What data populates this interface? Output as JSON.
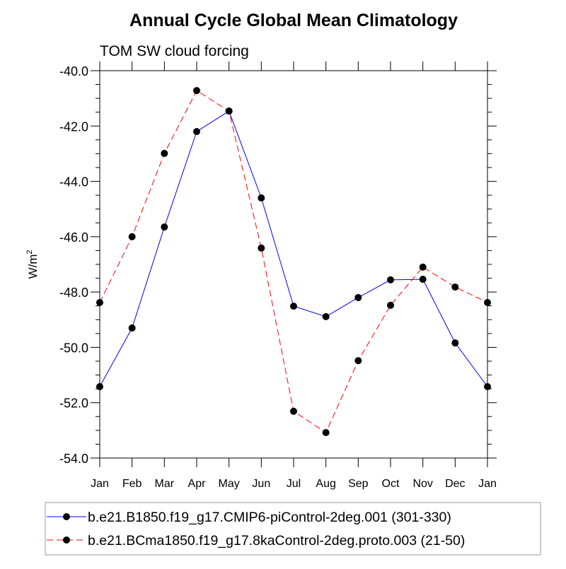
{
  "chart_data": {
    "type": "line",
    "title": "Annual Cycle Global Mean Climatology",
    "subtitle": "TOM SW cloud forcing",
    "xlabel": "",
    "ylabel": "W/m",
    "ylabel_superscript": "2",
    "categories": [
      "Jan",
      "Feb",
      "Mar",
      "Apr",
      "May",
      "Jun",
      "Jul",
      "Aug",
      "Sep",
      "Oct",
      "Nov",
      "Dec",
      "Jan"
    ],
    "ylim": [
      -54,
      -40
    ],
    "yticks": [
      "-40.0",
      "-42.0",
      "-44.0",
      "-46.0",
      "-48.0",
      "-50.0",
      "-52.0",
      "-54.0"
    ],
    "ytick_values": [
      -40,
      -42,
      -44,
      -46,
      -48,
      -50,
      -52,
      -54
    ],
    "grid": false,
    "legend_placement": "bottom",
    "series": [
      {
        "name": "b.e21.B1850.f19_g17.CMIP6-piControl-2deg.001 (301-330)",
        "color": "#0000ff",
        "dash": "solid",
        "values": [
          -51.42,
          -49.3,
          -45.65,
          -42.2,
          -41.46,
          -44.6,
          -48.51,
          -48.89,
          -48.2,
          -47.56,
          -47.54,
          -49.84,
          -51.42
        ]
      },
      {
        "name": "b.e21.BCma1850.f19_g17.8kaControl-2deg.proto.003 (21-50)",
        "color": "#ff0000",
        "dash": "dashed",
        "values": [
          -48.38,
          -46.0,
          -42.99,
          -40.72,
          -41.46,
          -46.41,
          -52.31,
          -53.08,
          -50.48,
          -48.48,
          -47.1,
          -47.82,
          -48.38
        ]
      }
    ]
  }
}
